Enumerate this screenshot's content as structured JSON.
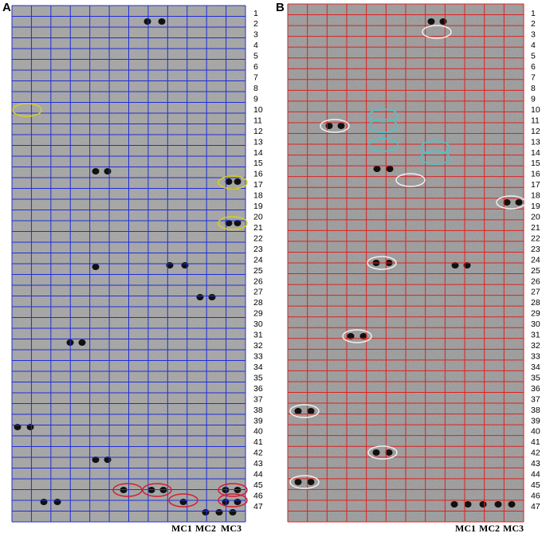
{
  "panels": [
    {
      "label": "A",
      "row_labels": [
        1,
        2,
        3,
        4,
        5,
        6,
        7,
        8,
        9,
        10,
        11,
        12,
        13,
        14,
        15,
        16,
        17,
        18,
        19,
        20,
        21,
        22,
        23,
        24,
        25,
        26,
        27,
        28,
        29,
        30,
        31,
        32,
        33,
        34,
        35,
        36,
        37,
        38,
        39,
        40,
        41,
        42,
        43,
        44,
        45,
        46,
        47
      ],
      "column_labels": [
        "MC1",
        "MC2",
        "MC3"
      ]
    },
    {
      "label": "B",
      "row_labels": [
        1,
        2,
        3,
        4,
        5,
        6,
        7,
        8,
        9,
        10,
        11,
        12,
        13,
        14,
        15,
        16,
        17,
        18,
        19,
        20,
        21,
        22,
        23,
        24,
        25,
        26,
        27,
        28,
        29,
        30,
        31,
        32,
        33,
        34,
        35,
        36,
        37,
        38,
        39,
        40,
        41,
        42,
        43,
        44,
        45,
        46,
        47
      ],
      "column_labels": [
        "MC1",
        "MC2",
        "MC3"
      ]
    }
  ]
}
